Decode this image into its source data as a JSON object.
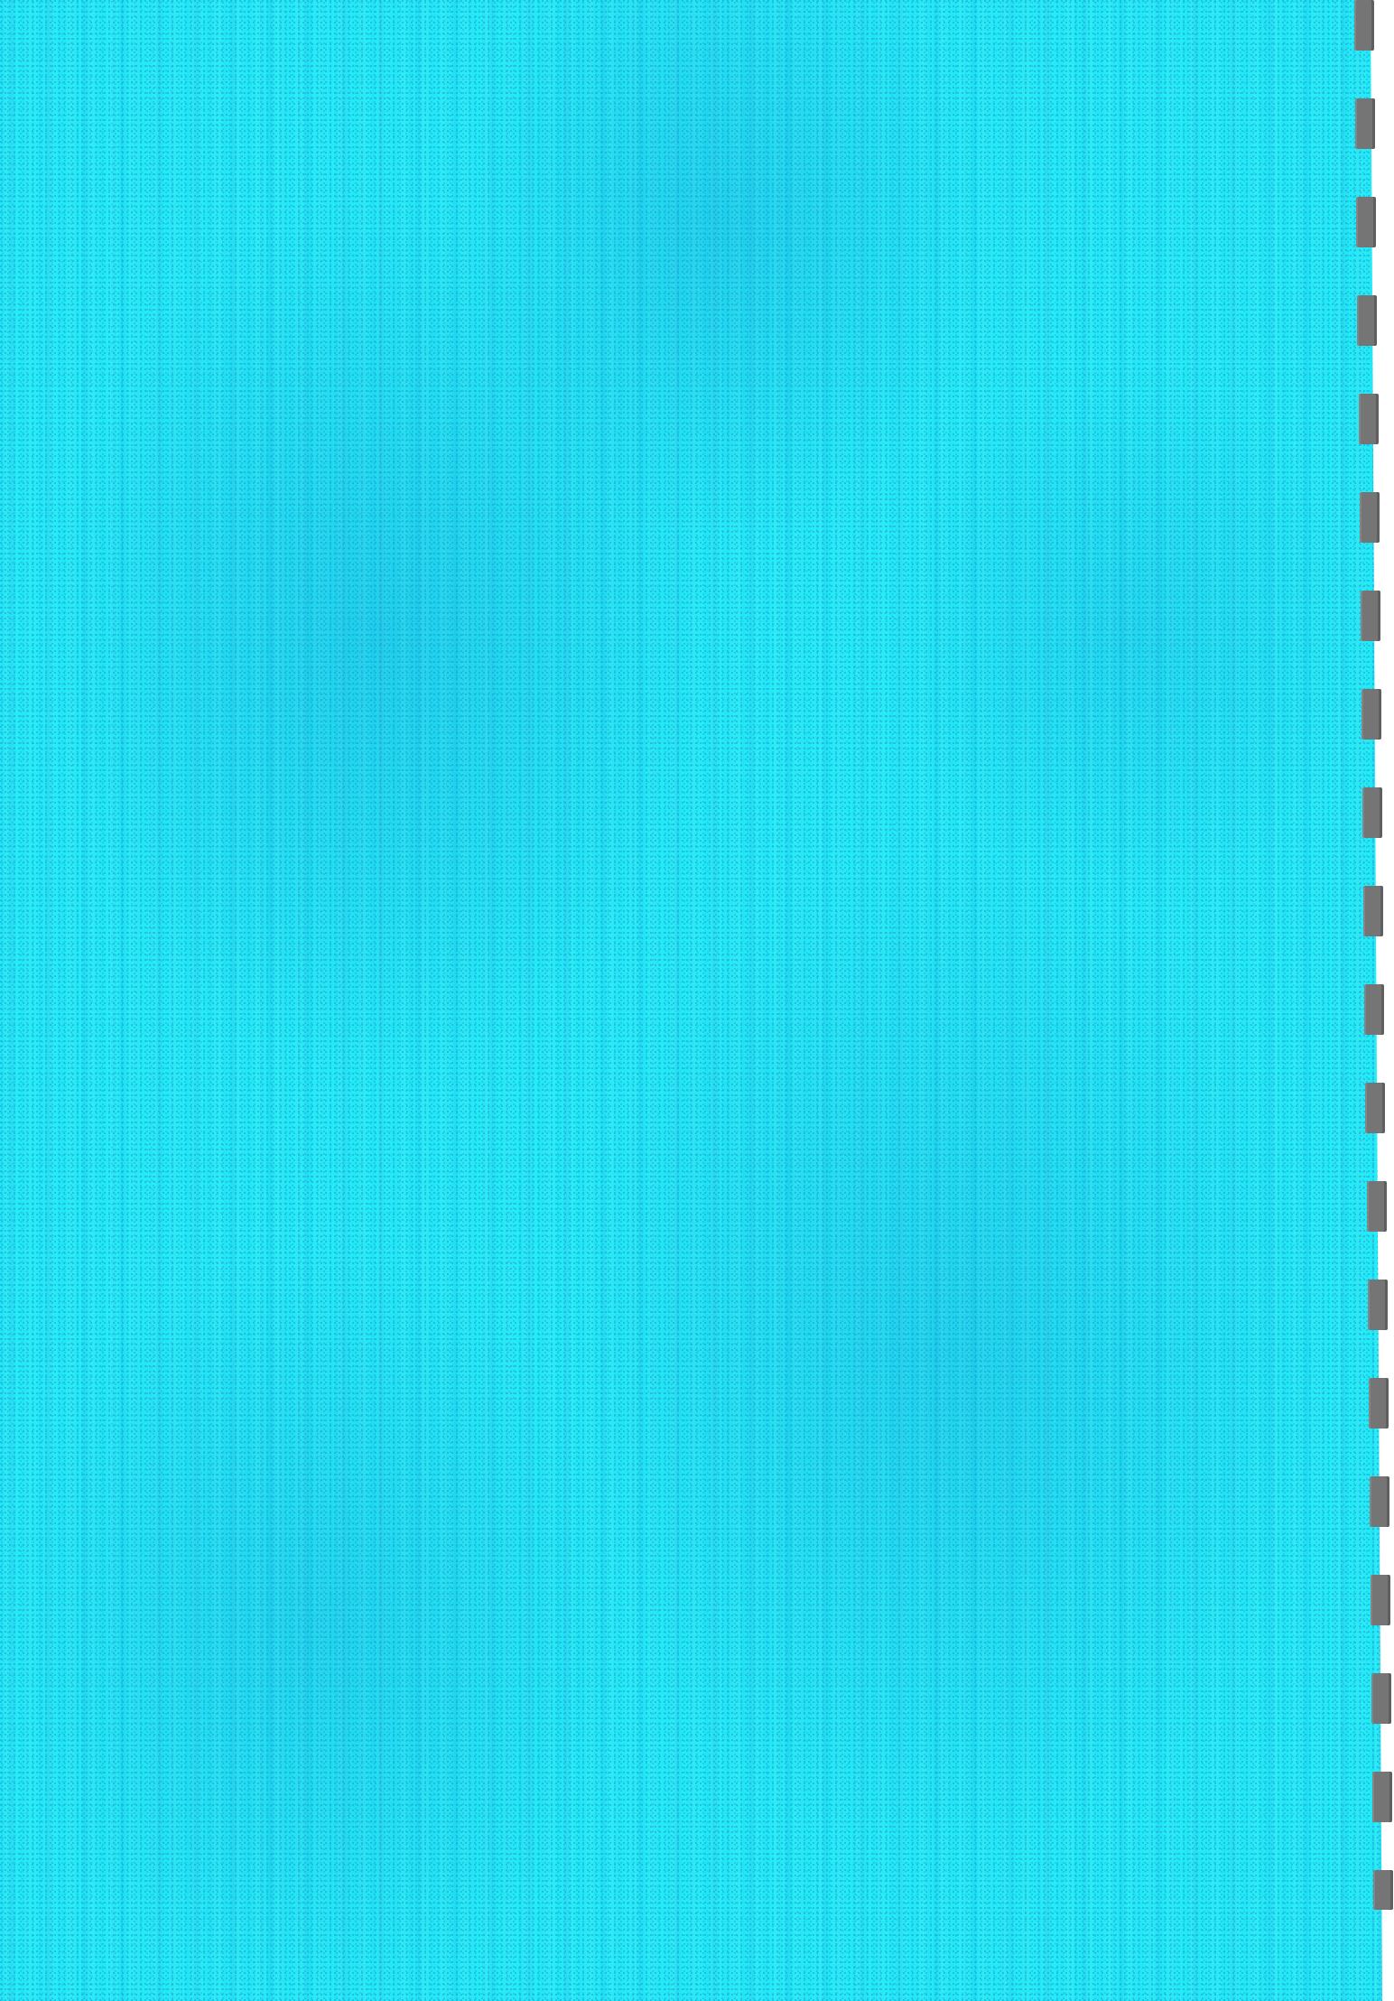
{
  "page": {
    "kind": "blank scanned notebook sheet",
    "paper_color": "#22ecf6",
    "texture_color": "#1a96d2",
    "binding_hole_color": "#757575",
    "binding_hole_count": 20
  }
}
